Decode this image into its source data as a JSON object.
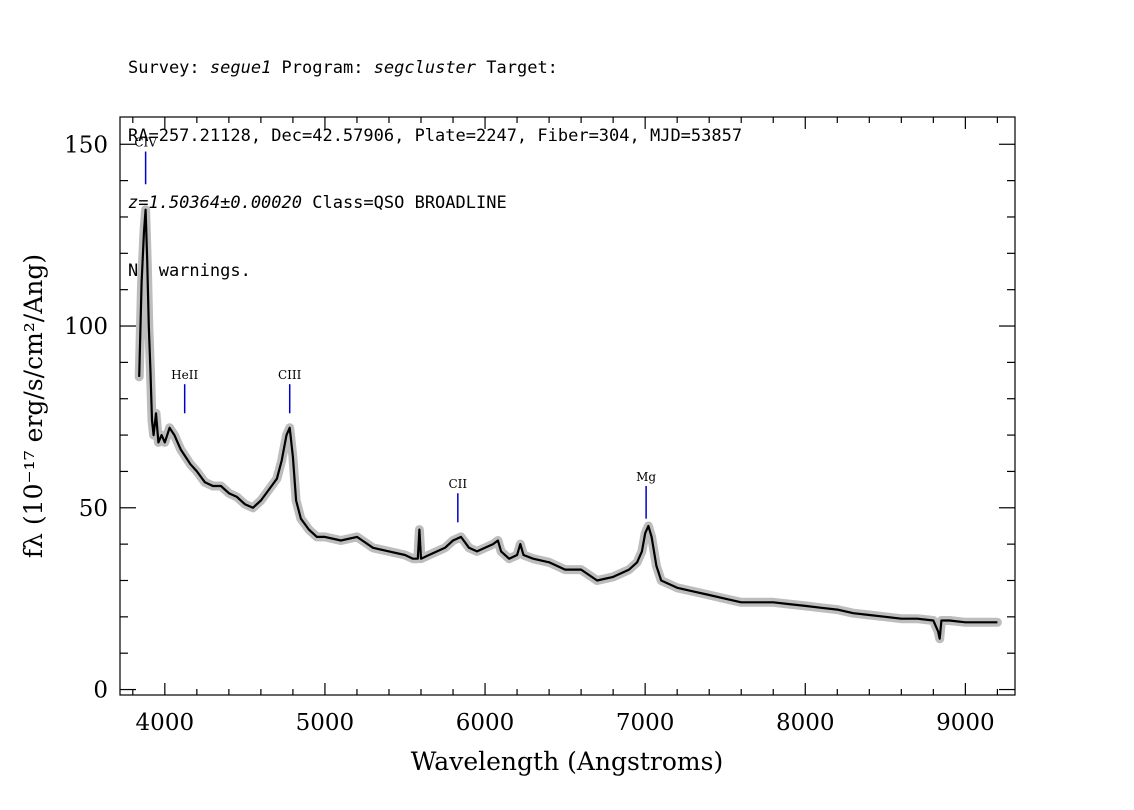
{
  "header": {
    "line1": {
      "survey_label": "Survey: ",
      "survey": "segue1",
      "program_label": " Program: ",
      "program": "segcluster",
      "target_label": " Target:"
    },
    "line2": "RA=257.21128, Dec=42.57906, Plate=2247, Fiber=304, MJD=53857",
    "line3": {
      "redshift": "z=1.50364±0.00020",
      "class_text": " Class=QSO BROADLINE"
    },
    "line4": "No warnings."
  },
  "chart_data": {
    "type": "line",
    "xlabel": "Wavelength (Angstroms)",
    "ylabel": "fλ (10⁻¹⁷ erg/s/cm²/Ang)",
    "xlim": [
      3720,
      9310
    ],
    "ylim": [
      -1.5,
      157.5
    ],
    "xticks": [
      4000,
      5000,
      6000,
      7000,
      8000,
      9000
    ],
    "yticks": [
      0,
      50,
      100,
      150
    ],
    "xtick_labels": [
      "4000",
      "5000",
      "6000",
      "7000",
      "8000",
      "9000"
    ],
    "ytick_labels": [
      "0",
      "50",
      "100",
      "150"
    ],
    "grid": false,
    "colors": {
      "flux": "#000000",
      "error_band": "#bdbdbd",
      "line_marker": "#0000cc"
    },
    "series": [
      {
        "x": [
          3840,
          3855,
          3870,
          3880,
          3890,
          3900,
          3910,
          3920,
          3930,
          3945,
          3960,
          3980,
          4000,
          4030,
          4060,
          4080,
          4100,
          4130,
          4160,
          4200,
          4250,
          4300,
          4350,
          4400,
          4450,
          4500,
          4550,
          4600,
          4650,
          4700,
          4730,
          4760,
          4780,
          4800,
          4820,
          4850,
          4900,
          4950,
          5000,
          5100,
          5200,
          5300,
          5400,
          5500,
          5550,
          5580,
          5590,
          5600,
          5650,
          5700,
          5750,
          5800,
          5850,
          5900,
          5950,
          6000,
          6050,
          6080,
          6100,
          6150,
          6200,
          6220,
          6240,
          6300,
          6400,
          6500,
          6600,
          6700,
          6800,
          6900,
          6950,
          6980,
          7000,
          7020,
          7040,
          7070,
          7100,
          7200,
          7300,
          7400,
          7500,
          7600,
          7700,
          7800,
          7900,
          8000,
          8100,
          8200,
          8300,
          8400,
          8500,
          8600,
          8700,
          8800,
          8830,
          8840,
          8850,
          8900,
          9000,
          9100,
          9200
        ],
        "y": [
          86,
          112,
          126,
          132,
          118,
          100,
          88,
          74,
          70,
          76,
          68,
          70,
          68,
          72,
          70,
          68,
          66,
          64,
          62,
          60,
          57,
          56,
          56,
          54,
          53,
          51,
          50,
          52,
          55,
          58,
          63,
          70,
          72,
          64,
          52,
          47,
          44,
          42,
          42,
          41,
          42,
          39,
          38,
          37,
          36,
          36,
          44,
          36,
          37,
          38,
          39,
          41,
          42,
          39,
          38,
          39,
          40,
          41,
          38,
          36,
          37,
          40,
          37,
          36,
          35,
          33,
          33,
          30,
          31,
          33,
          35,
          38,
          43,
          45,
          42,
          34,
          30,
          28,
          27,
          26,
          25,
          24,
          24,
          24,
          23.5,
          23,
          22.5,
          22,
          21,
          20.5,
          20,
          19.5,
          19.5,
          19,
          16,
          14,
          19,
          19,
          18.5,
          18.5,
          18.5
        ]
      }
    ],
    "annotations": [
      {
        "label": "CIV",
        "x": 3880,
        "y_from": 139,
        "y_to": 148
      },
      {
        "label": "HeII",
        "x": 4124,
        "y_from": 76,
        "y_to": 84
      },
      {
        "label": "CIII",
        "x": 4780,
        "y_from": 76,
        "y_to": 84
      },
      {
        "label": "CII",
        "x": 5830,
        "y_from": 46,
        "y_to": 54
      },
      {
        "label": "Mg",
        "x": 7006,
        "y_from": 47,
        "y_to": 56
      }
    ]
  }
}
